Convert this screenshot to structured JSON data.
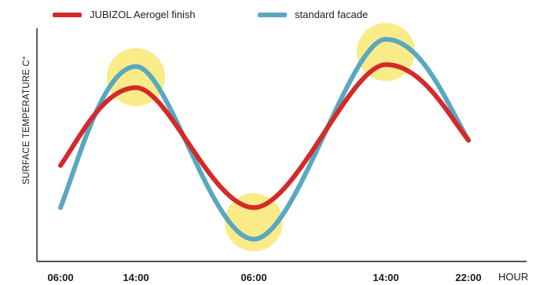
{
  "chart_data": {
    "type": "line",
    "title": "",
    "xlabel": "HOUR",
    "ylabel": "SURFACE TEMPERATURE C°",
    "categories": [
      "06:00",
      "14:00",
      "06:00",
      "14:00",
      "22:00"
    ],
    "y_ticks_shown": false,
    "ylim": [
      0,
      100
    ],
    "grid": false,
    "legend": "top-left",
    "series": [
      {
        "name": "JUBIZOL Aerogel finish",
        "color": "#d42a2a",
        "points": [
          {
            "x": 0.0,
            "y": 40
          },
          {
            "x": 1.0,
            "y": 77
          },
          {
            "x": 2.0,
            "y": 20
          },
          {
            "x": 3.0,
            "y": 88
          },
          {
            "x": 4.0,
            "y": 52
          }
        ]
      },
      {
        "name": "standard facade",
        "color": "#5aa7c2",
        "points": [
          {
            "x": 0.0,
            "y": 20
          },
          {
            "x": 1.0,
            "y": 87
          },
          {
            "x": 2.0,
            "y": 5
          },
          {
            "x": 3.0,
            "y": 100
          },
          {
            "x": 4.0,
            "y": 52
          }
        ]
      }
    ],
    "highlights": [
      {
        "x": 1.0,
        "y": 82,
        "color": "#f7e55a"
      },
      {
        "x": 2.0,
        "y": 13,
        "color": "#f7e55a"
      },
      {
        "x": 3.0,
        "y": 94,
        "color": "#f7e55a"
      }
    ]
  }
}
